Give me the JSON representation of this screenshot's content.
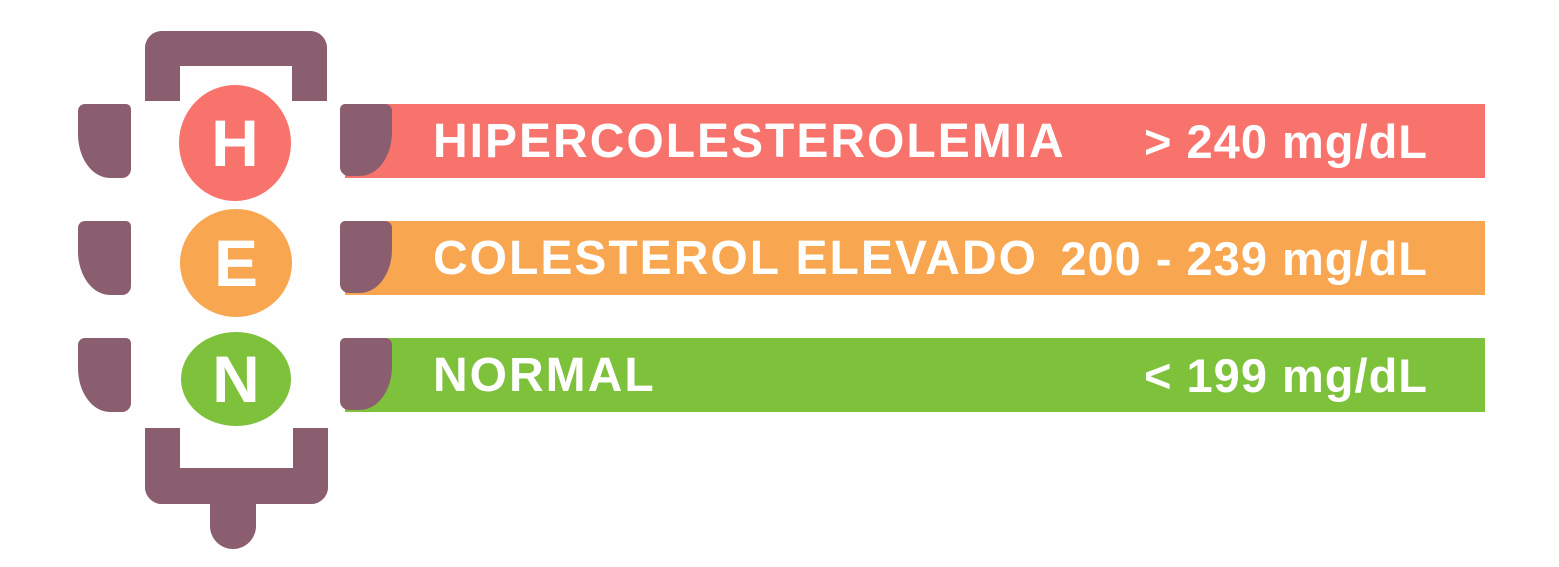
{
  "infographic": {
    "frame_color": "#8b5e6f",
    "text_color": "#ffffff",
    "lights": [
      {
        "letter": "H",
        "color": "#f8736b"
      },
      {
        "letter": "E",
        "color": "#f8a650"
      },
      {
        "letter": "N",
        "color": "#7ec13b"
      }
    ],
    "rows": [
      {
        "label": "HIPERCOLESTEROLEMIA",
        "range": "> 240 mg/dL",
        "color": "#f8736b"
      },
      {
        "label": "COLESTEROL ELEVADO",
        "range": "200 - 239 mg/dL",
        "color": "#f8a650"
      },
      {
        "label": "NORMAL",
        "range": "< 199 mg/dL",
        "color": "#7ec13b"
      }
    ]
  }
}
